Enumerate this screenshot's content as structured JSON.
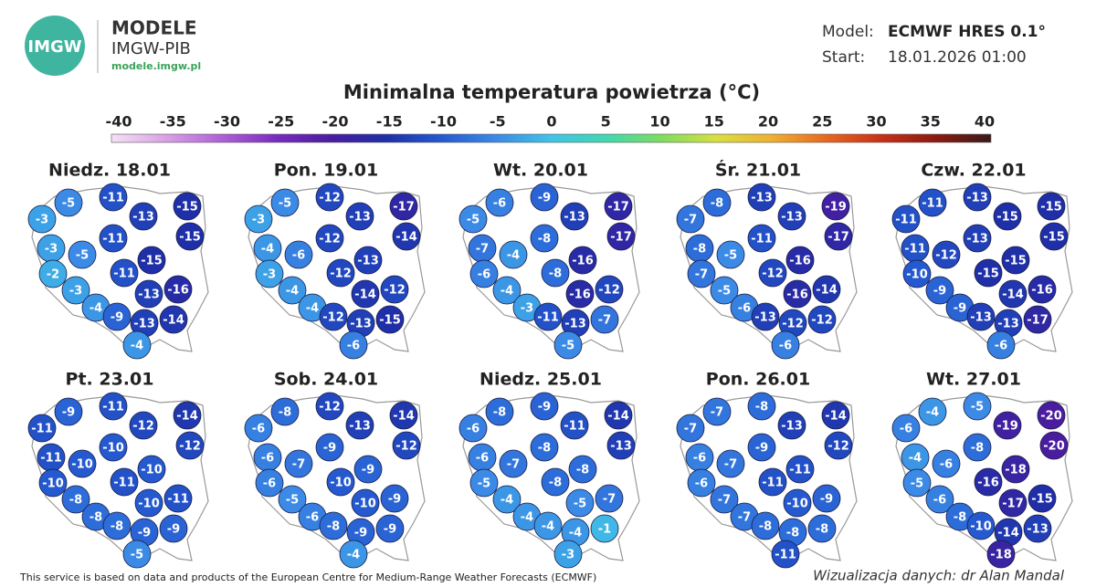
{
  "header": {
    "logo": "IMGW",
    "brand": "MODELE",
    "org": "IMGW-PIB",
    "url": "modele.imgw.pl",
    "model_label": "Model:",
    "model": "ECMWF HRES 0.1°",
    "start_label": "Start:",
    "start": "18.01.2026 01:00"
  },
  "title": "Minimalna temperatura powietrza (°C)",
  "colorbar": {
    "ticks": [
      -40,
      -35,
      -30,
      -25,
      -20,
      -15,
      -10,
      -5,
      0,
      5,
      10,
      15,
      20,
      25,
      30,
      35,
      40
    ],
    "colors": [
      "#f6e0f6",
      "#d9a0e6",
      "#b060d8",
      "#7a2cc0",
      "#4a1ca0",
      "#1f2fa8",
      "#2459d0",
      "#3b8ae6",
      "#40c4e8",
      "#40d8b0",
      "#7edc60",
      "#d8e040",
      "#f0b030",
      "#e86820",
      "#c83018",
      "#8a1a10",
      "#3a1a1a"
    ]
  },
  "panels": [
    {
      "day": "Niedz. 18.01",
      "values": [
        -5,
        -11,
        -15,
        -3,
        -13,
        -11,
        -15,
        -3,
        -5,
        -15,
        -2,
        -11,
        -16,
        -13,
        -3,
        -4,
        -9,
        -13,
        -14,
        -4
      ]
    },
    {
      "day": "Pon. 19.01",
      "values": [
        -5,
        -12,
        -17,
        -3,
        -13,
        -12,
        -14,
        -4,
        -6,
        -13,
        -3,
        -12,
        -12,
        -14,
        -4,
        -4,
        -12,
        -13,
        -15,
        -6
      ]
    },
    {
      "day": "Wt. 20.01",
      "values": [
        -6,
        -9,
        -17,
        -5,
        -13,
        -8,
        -17,
        -7,
        -4,
        -16,
        -6,
        -8,
        -12,
        -16,
        -4,
        -3,
        -11,
        -13,
        -7,
        -5
      ]
    },
    {
      "day": "Śr. 21.01",
      "values": [
        -8,
        -13,
        -19,
        -7,
        -13,
        -11,
        -17,
        -8,
        -5,
        -16,
        -7,
        -12,
        -14,
        -16,
        -5,
        -6,
        -13,
        -12,
        -12,
        -6
      ]
    },
    {
      "day": "Czw. 22.01",
      "values": [
        -11,
        -13,
        -15,
        -11,
        -15,
        -13,
        -15,
        -11,
        -12,
        -15,
        -10,
        -15,
        -16,
        -14,
        -9,
        -9,
        -13,
        -13,
        -17,
        -6
      ]
    },
    {
      "day": "Pt. 23.01",
      "values": [
        -9,
        -11,
        -14,
        -11,
        -12,
        -10,
        -12,
        -11,
        -10,
        -10,
        -10,
        -11,
        -11,
        -10,
        -8,
        -8,
        -8,
        -9,
        -9,
        -5
      ]
    },
    {
      "day": "Sob. 24.01",
      "values": [
        -8,
        -12,
        -14,
        -6,
        -13,
        -9,
        -12,
        -6,
        -7,
        -9,
        -6,
        -10,
        -9,
        -10,
        -5,
        -6,
        -8,
        -9,
        -9,
        -4
      ]
    },
    {
      "day": "Niedz. 25.01",
      "values": [
        -8,
        -9,
        -14,
        -6,
        -11,
        -8,
        -13,
        -6,
        -7,
        -8,
        -5,
        -8,
        -7,
        -5,
        -4,
        -4,
        -4,
        -4,
        -1,
        -3
      ]
    },
    {
      "day": "Pon. 26.01",
      "values": [
        -7,
        -8,
        -14,
        -7,
        -13,
        -9,
        -12,
        -6,
        -7,
        -11,
        -6,
        -11,
        -9,
        -10,
        -7,
        -7,
        -8,
        -8,
        -8,
        -11
      ]
    },
    {
      "day": "Wt. 27.01",
      "values": [
        -4,
        -5,
        -20,
        -6,
        -19,
        -8,
        -20,
        -4,
        -6,
        -18,
        -5,
        -16,
        -15,
        -17,
        -6,
        -8,
        -10,
        -14,
        -13,
        -18
      ]
    }
  ],
  "footer": {
    "source": "This service is based on data and products of the European Centre for Medium-Range Weather Forecasts (ECMWF)",
    "author": "Wizualizacja danych: dr Alan Mandal"
  }
}
